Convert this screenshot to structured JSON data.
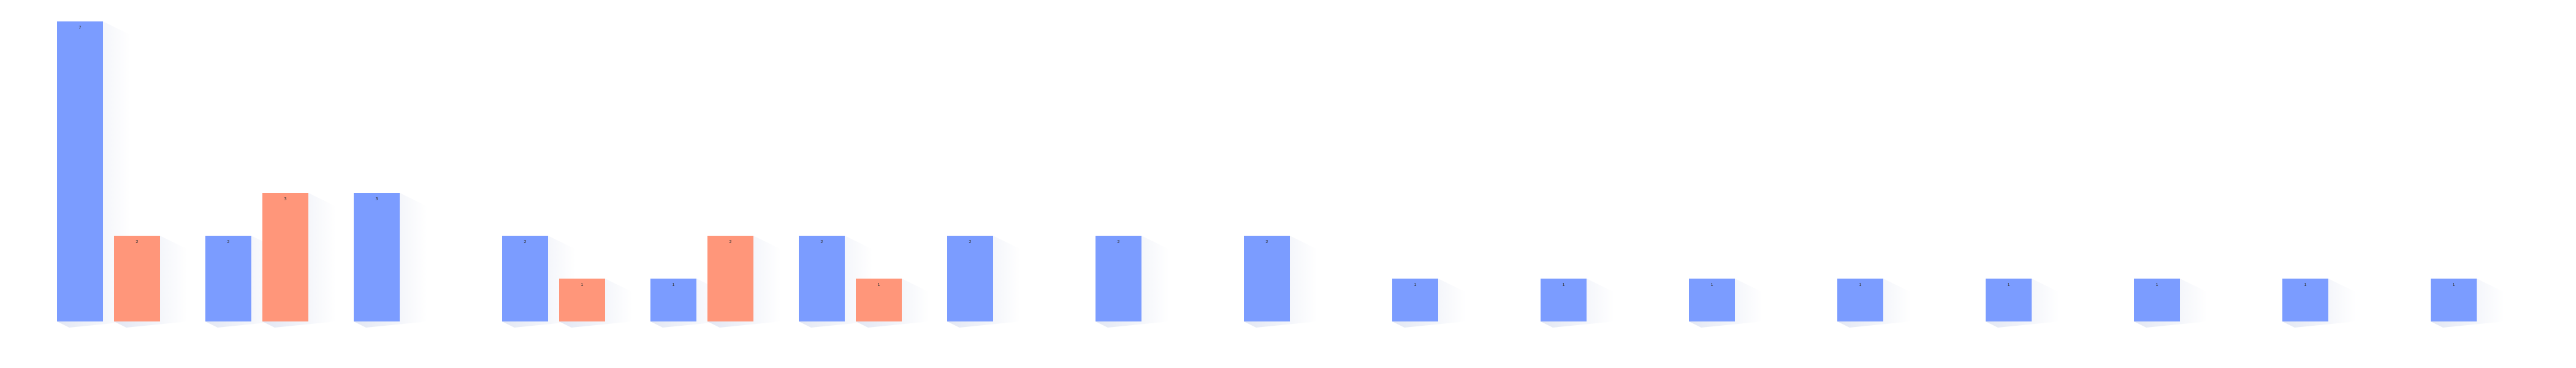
{
  "chart_data": {
    "type": "bar",
    "title": "",
    "xlabel": "",
    "ylabel": "",
    "ylim": [
      0,
      7.2
    ],
    "grid": false,
    "legend": "none",
    "colors": {
      "series_a": "#7b9cff",
      "series_b": "#ff967a",
      "shadow": "#dfe4f2"
    },
    "groups": [
      {
        "a": 7,
        "b": 2
      },
      {
        "a": 2,
        "b": 3
      },
      {
        "a": 3,
        "b": null
      },
      {
        "a": 2,
        "b": 1
      },
      {
        "a": 1,
        "b": 2
      },
      {
        "a": 2,
        "b": 1
      },
      {
        "a": 2,
        "b": null
      },
      {
        "a": 2,
        "b": null
      },
      {
        "a": 2,
        "b": null
      },
      {
        "a": 1,
        "b": null
      },
      {
        "a": 1,
        "b": null
      },
      {
        "a": 1,
        "b": null
      },
      {
        "a": 1,
        "b": null
      },
      {
        "a": 1,
        "b": null
      },
      {
        "a": 1,
        "b": null
      },
      {
        "a": 1,
        "b": null
      },
      {
        "a": 1,
        "b": null
      }
    ]
  }
}
